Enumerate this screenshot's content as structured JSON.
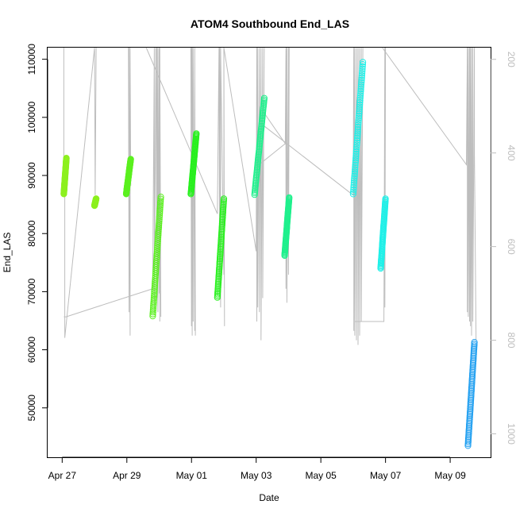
{
  "chart_data": {
    "type": "scatter",
    "title": "ATOM4 Southbound End_LAS",
    "xlabel": "Date",
    "ylabel": "End_LAS",
    "x_ticks": [
      "Apr 27",
      "Apr 29",
      "May 01",
      "May 03",
      "May 05",
      "May 07",
      "May 09"
    ],
    "x_tick_days": [
      0,
      2,
      4,
      6,
      8,
      10,
      12
    ],
    "xlim_days": [
      -0.45,
      13.25
    ],
    "y_ticks": [
      50000,
      60000,
      70000,
      80000,
      90000,
      100000,
      110000
    ],
    "ylim": [
      41500,
      112000
    ],
    "right_axis": {
      "ticks": [
        200,
        400,
        600,
        800,
        1000
      ],
      "ylim": [
        1050,
        175
      ],
      "color": "#bdbdbd"
    },
    "series": [
      {
        "color": "#8cf01e",
        "segments": [
          {
            "x": [
              0.05,
              0.13
            ],
            "y": [
              86800,
              93000
            ]
          },
          {
            "x": [
              1.0,
              1.05
            ],
            "y": [
              84800,
              86000
            ]
          }
        ]
      },
      {
        "color": "#5af01e",
        "segments": [
          {
            "x": [
              1.98,
              2.12
            ],
            "y": [
              86800,
              92800
            ]
          },
          {
            "x": [
              2.8,
              3.05
            ],
            "y": [
              65800,
              86300
            ]
          }
        ]
      },
      {
        "color": "#28f01e",
        "segments": [
          {
            "x": [
              3.98,
              4.15
            ],
            "y": [
              86800,
              97200
            ]
          },
          {
            "x": [
              4.8,
              5.0
            ],
            "y": [
              69000,
              86000
            ]
          }
        ]
      },
      {
        "color": "#1ef08c",
        "segments": [
          {
            "x": [
              5.95,
              6.25
            ],
            "y": [
              86700,
              103300
            ]
          },
          {
            "x": [
              6.88,
              7.02
            ],
            "y": [
              76200,
              86200
            ]
          }
        ]
      },
      {
        "color": "#1ef0e8",
        "segments": [
          {
            "x": [
              9.0,
              9.3
            ],
            "y": [
              86800,
              109500
            ]
          },
          {
            "x": [
              9.85,
              10.0
            ],
            "y": [
              74000,
              86000
            ]
          }
        ]
      },
      {
        "color": "#1e9ef0",
        "segments": [
          {
            "x": [
              12.55,
              12.75
            ],
            "y": [
              43500,
              61300
            ]
          }
        ]
      }
    ],
    "traces": [
      {
        "x": [
          0.05,
          0.05,
          0.08,
          0.08,
          1.0,
          1.02,
          1.02,
          1.05
        ],
        "r": [
          175,
          490,
          490,
          795,
          175,
          490,
          490,
          175
        ]
      },
      {
        "x": [
          0.05,
          0.12,
          2.8,
          2.85,
          2.85,
          2.9
        ],
        "r": [
          750,
          750,
          690,
          175,
          740,
          175
        ]
      },
      {
        "x": [
          2.05,
          2.07,
          2.07,
          2.1,
          2.1,
          2.12
        ],
        "r": [
          175,
          740,
          175,
          790,
          175,
          470
        ]
      },
      {
        "x": [
          2.6,
          4.8,
          4.85,
          4.87,
          4.87,
          4.9,
          4.9,
          5.0,
          5.0,
          5.02
        ],
        "r": [
          175,
          530,
          175,
          700,
          175,
          730,
          175,
          660,
          175,
          770
        ]
      },
      {
        "x": [
          2.9,
          2.93,
          2.93,
          2.96,
          2.96,
          3.0,
          3.0,
          3.02,
          3.02,
          3.05
        ],
        "r": [
          175,
          710,
          175,
          740,
          175,
          700,
          175,
          760,
          175,
          750
        ]
      },
      {
        "x": [
          3.98,
          4.0,
          4.0,
          4.02,
          4.02,
          4.05,
          4.05,
          4.1,
          4.1,
          4.12
        ],
        "r": [
          175,
          770,
          175,
          790,
          175,
          760,
          175,
          780,
          175,
          790
        ]
      },
      {
        "x": [
          5.0,
          6.0,
          6.02,
          6.02,
          6.05,
          6.05,
          6.1,
          6.1,
          6.15,
          6.15,
          6.2,
          6.2,
          6.25
        ],
        "r": [
          175,
          610,
          175,
          760,
          175,
          730,
          175,
          740,
          175,
          800,
          175,
          710,
          175
        ]
      },
      {
        "x": [
          6.1,
          6.2,
          6.9,
          6.92,
          6.92,
          6.95,
          6.95,
          7.0,
          7.0,
          7.02
        ],
        "r": [
          310,
          310,
          380,
          175,
          690,
          175,
          720,
          175,
          660,
          175
        ]
      },
      {
        "x": [
          6.0,
          6.9,
          6.95
        ],
        "r": [
          430,
          380,
          175
        ]
      },
      {
        "x": [
          6.2,
          9.0,
          9.02,
          9.02,
          9.05,
          9.05,
          9.1,
          9.1,
          9.15,
          9.15,
          9.2,
          9.2,
          9.25,
          9.25,
          9.3
        ],
        "r": [
          340,
          490,
          175,
          780,
          175,
          790,
          175,
          800,
          175,
          810,
          175,
          790,
          175,
          760,
          175
        ]
      },
      {
        "x": [
          9.05,
          9.95,
          9.98,
          9.98,
          10.0
        ],
        "r": [
          760,
          760,
          175,
          730,
          175
        ]
      },
      {
        "x": [
          9.9,
          12.5,
          12.53,
          12.53,
          12.56,
          12.56,
          12.6,
          12.6,
          12.63,
          12.63,
          12.66,
          12.66,
          12.7,
          12.7,
          12.75,
          12.75,
          12.8
        ],
        "r": [
          175,
          425,
          175,
          740,
          175,
          750,
          175,
          760,
          175,
          770,
          175,
          790,
          175,
          760,
          175,
          400,
          800
        ]
      }
    ]
  }
}
